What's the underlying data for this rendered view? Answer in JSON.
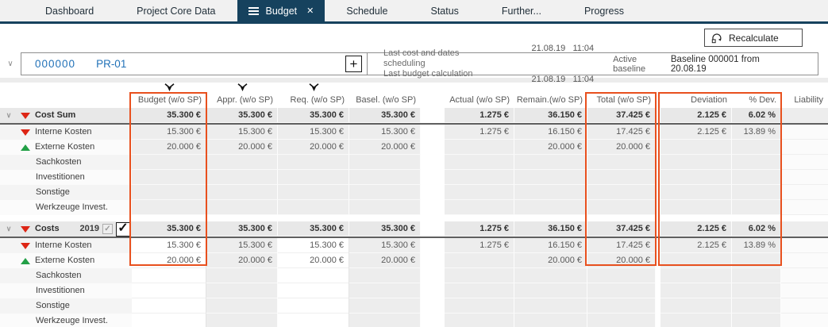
{
  "tabs": {
    "items": [
      {
        "label": "Dashboard",
        "active": false
      },
      {
        "label": "Project Core Data",
        "active": false
      },
      {
        "label": "Budget",
        "active": true
      },
      {
        "label": "Schedule",
        "active": false
      },
      {
        "label": "Status",
        "active": false
      },
      {
        "label": "Further...",
        "active": false
      },
      {
        "label": "Progress",
        "active": false
      }
    ]
  },
  "toolbar": {
    "recalculate_label": "Recalculate"
  },
  "project": {
    "number": "000000",
    "code": "PR-01",
    "last_cost_scheduling_label": "Last cost and dates scheduling",
    "last_budget_calc_label": "Last budget calculation",
    "last_cost_scheduling_datetime": "21.08.19   11:04",
    "last_budget_calc_datetime": "21.08.19   11:04",
    "active_baseline_label": "Active baseline",
    "baseline_value": "Baseline 000001 from 20.08.19"
  },
  "colors": {
    "accent_navy": "#16425e",
    "highlight_orange": "#e8501e",
    "trend_red": "#dd2515",
    "trend_green": "#23a047",
    "project_blue": "#2272b8"
  },
  "table": {
    "headers": {
      "budget": "Budget (w/o SP)",
      "appr": "Appr. (w/o SP)",
      "req": "Req. (w/o SP)",
      "basel": "Basel. (w/o SP)",
      "actual": "Actual (w/o SP)",
      "remain": "Remain.(w/o SP)",
      "total": "Total (w/o SP)",
      "deviation": "Deviation",
      "pdev": "% Dev.",
      "liability": "Liability"
    },
    "groups": [
      {
        "rows": [
          {
            "name": "Cost Sum",
            "sum": true,
            "trend": "down",
            "values": {
              "budget": "35.300 €",
              "appr": "35.300 €",
              "req": "35.300 €",
              "basel": "35.300 €",
              "actual": "1.275 €",
              "remain": "36.150 €",
              "total": "37.425 €",
              "deviation": "2.125 €",
              "pdev": "6.02 %"
            }
          },
          {
            "name": "Interne Kosten",
            "trend": "down",
            "values": {
              "budget": "15.300 €",
              "appr": "15.300 €",
              "req": "15.300 €",
              "basel": "15.300 €",
              "actual": "1.275 €",
              "remain": "16.150 €",
              "total": "17.425 €",
              "deviation": "2.125 €",
              "pdev": "13.89 %"
            }
          },
          {
            "name": "Externe Kosten",
            "trend": "up",
            "values": {
              "budget": "20.000 €",
              "appr": "20.000 €",
              "req": "20.000 €",
              "basel": "20.000 €",
              "remain": "20.000 €",
              "total": "20.000 €"
            }
          },
          {
            "name": "Sachkosten",
            "values": {}
          },
          {
            "name": "Investitionen",
            "values": {}
          },
          {
            "name": "Sonstige",
            "values": {}
          },
          {
            "name": "Werkzeuge Invest.",
            "values": {}
          }
        ]
      },
      {
        "rows": [
          {
            "name": "Costs",
            "year": "2019",
            "sum": true,
            "trend": "down",
            "checkboxes": true,
            "values": {
              "budget": "35.300 €",
              "appr": "35.300 €",
              "req": "35.300 €",
              "basel": "35.300 €",
              "actual": "1.275 €",
              "remain": "36.150 €",
              "total": "37.425 €",
              "deviation": "2.125 €",
              "pdev": "6.02 %"
            }
          },
          {
            "name": "Interne Kosten",
            "trend": "down",
            "values": {
              "budget": "15.300 €",
              "appr": "15.300 €",
              "req": "15.300 €",
              "basel": "15.300 €",
              "actual": "1.275 €",
              "remain": "16.150 €",
              "total": "17.425 €",
              "deviation": "2.125 €",
              "pdev": "13.89 %"
            }
          },
          {
            "name": "Externe Kosten",
            "trend": "up",
            "values": {
              "budget": "20.000 €",
              "appr": "20.000 €",
              "req": "20.000 €",
              "basel": "20.000 €",
              "remain": "20.000 €",
              "total": "20.000 €"
            }
          },
          {
            "name": "Sachkosten",
            "values": {}
          },
          {
            "name": "Investitionen",
            "values": {}
          },
          {
            "name": "Sonstige",
            "values": {}
          },
          {
            "name": "Werkzeuge Invest.",
            "values": {}
          }
        ]
      }
    ]
  }
}
